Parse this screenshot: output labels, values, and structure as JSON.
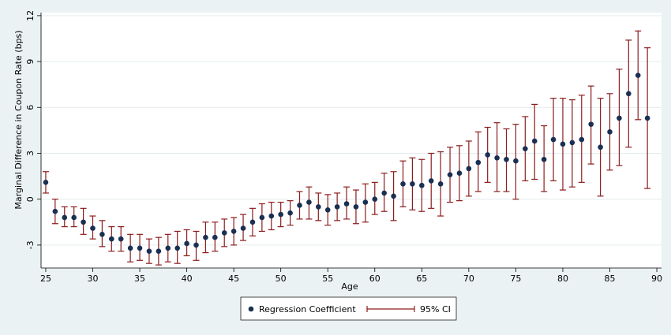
{
  "chart_data": {
    "type": "scatter",
    "title": "",
    "xlabel": "Age",
    "ylabel": "Marginal Difference in Coupon Rate (bps)",
    "xlim": [
      24.5,
      90.5
    ],
    "ylim": [
      -4.5,
      12.2
    ],
    "x_ticks": [
      25,
      30,
      35,
      40,
      45,
      50,
      55,
      60,
      65,
      70,
      75,
      80,
      85,
      90
    ],
    "y_ticks": [
      -3,
      0,
      3,
      6,
      9,
      12
    ],
    "grid": "horizontal",
    "legend_position": "bottom",
    "series": [
      {
        "name": "Regression Coefficient",
        "kind": "point",
        "color": "#1a2f52",
        "x": [
          25,
          26,
          27,
          28,
          29,
          30,
          31,
          32,
          33,
          34,
          35,
          36,
          37,
          38,
          39,
          40,
          41,
          42,
          43,
          44,
          45,
          46,
          47,
          48,
          49,
          50,
          51,
          52,
          53,
          54,
          55,
          56,
          57,
          58,
          59,
          60,
          61,
          62,
          63,
          64,
          65,
          66,
          67,
          68,
          69,
          70,
          71,
          72,
          73,
          74,
          75,
          76,
          77,
          78,
          79,
          80,
          81,
          82,
          83,
          84,
          85,
          86,
          87,
          88,
          89
        ],
        "y": [
          1.1,
          -0.8,
          -1.2,
          -1.2,
          -1.5,
          -1.9,
          -2.3,
          -2.6,
          -2.6,
          -3.2,
          -3.2,
          -3.4,
          -3.4,
          -3.2,
          -3.2,
          -2.9,
          -3.0,
          -2.5,
          -2.5,
          -2.2,
          -2.1,
          -1.9,
          -1.5,
          -1.2,
          -1.1,
          -1.0,
          -0.9,
          -0.4,
          -0.2,
          -0.5,
          -0.7,
          -0.5,
          -0.3,
          -0.5,
          -0.2,
          0.0,
          0.4,
          0.2,
          1.0,
          1.0,
          0.9,
          1.2,
          1.0,
          1.6,
          1.7,
          2.0,
          2.4,
          2.9,
          2.7,
          2.6,
          2.5,
          3.3,
          3.8,
          2.6,
          3.9,
          3.6,
          3.7,
          3.9,
          4.9,
          3.4,
          4.4,
          5.3,
          6.9,
          8.1,
          5.3
        ],
        "ci_low": [
          0.4,
          -1.6,
          -1.8,
          -1.8,
          -2.3,
          -2.6,
          -3.1,
          -3.4,
          -3.4,
          -4.1,
          -4.0,
          -4.2,
          -4.3,
          -4.1,
          -4.2,
          -3.7,
          -4.0,
          -3.5,
          -3.4,
          -3.1,
          -3.0,
          -2.7,
          -2.4,
          -2.1,
          -2.0,
          -1.8,
          -1.7,
          -1.3,
          -1.3,
          -1.4,
          -1.7,
          -1.4,
          -1.3,
          -1.6,
          -1.5,
          -1.0,
          -0.8,
          -1.4,
          -0.5,
          -0.7,
          -0.8,
          -0.6,
          -1.1,
          -0.2,
          -0.1,
          0.2,
          0.5,
          1.1,
          0.5,
          0.5,
          0.0,
          1.2,
          1.3,
          0.5,
          1.2,
          0.6,
          0.8,
          1.1,
          2.3,
          0.2,
          1.9,
          2.2,
          3.4,
          5.2,
          0.7
        ],
        "ci_high": [
          1.8,
          0.0,
          -0.5,
          -0.5,
          -0.6,
          -1.1,
          -1.4,
          -1.8,
          -1.8,
          -2.3,
          -2.3,
          -2.6,
          -2.5,
          -2.3,
          -2.1,
          -2.0,
          -2.1,
          -1.5,
          -1.5,
          -1.3,
          -1.2,
          -1.0,
          -0.6,
          -0.3,
          -0.2,
          -0.2,
          -0.1,
          0.5,
          0.8,
          0.4,
          0.3,
          0.4,
          0.8,
          0.6,
          1.0,
          1.1,
          1.7,
          1.8,
          2.5,
          2.7,
          2.6,
          3.0,
          3.1,
          3.4,
          3.5,
          3.8,
          4.4,
          4.7,
          5.0,
          4.6,
          4.9,
          5.4,
          6.2,
          4.8,
          6.6,
          6.6,
          6.5,
          6.8,
          7.4,
          6.6,
          6.9,
          8.5,
          10.4,
          11.0,
          9.9
        ]
      },
      {
        "name": "95% CI",
        "kind": "error-bar",
        "color": "#8b1c1c"
      }
    ]
  }
}
